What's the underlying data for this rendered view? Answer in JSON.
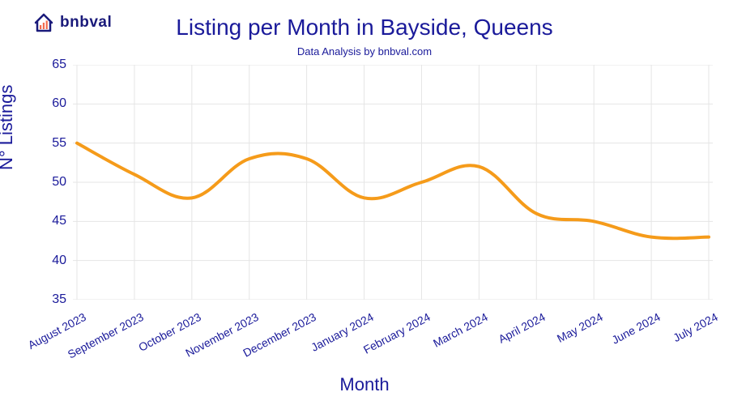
{
  "logo": {
    "text": "bnbval"
  },
  "chart": {
    "type": "line",
    "title": "Listing per Month in Bayside, Queens",
    "subtitle": "Data Analysis by bnbval.com",
    "ylabel": "N° Listings",
    "xlabel": "Month",
    "title_fontsize": 28,
    "subtitle_fontsize": 13,
    "axis_label_fontsize": 22,
    "tick_fontsize": 16,
    "categories": [
      "August 2023",
      "September 2023",
      "October 2023",
      "November 2023",
      "December 2023",
      "January 2024",
      "February 2024",
      "March 2024",
      "April 2024",
      "May 2024",
      "June 2024",
      "July 2024"
    ],
    "values": [
      55,
      51,
      48,
      53,
      53,
      48,
      50,
      52,
      46,
      45,
      43,
      43
    ],
    "line_color": "#f59b1a",
    "line_width": 4,
    "grid_color": "#e5e5e5",
    "background_color": "#ffffff",
    "text_color": "#1a1a9a",
    "ylim": [
      35,
      65
    ],
    "ytick_step": 5,
    "yticks": [
      35,
      40,
      45,
      50,
      55,
      60,
      65
    ],
    "xlabel_rotation_deg": -28,
    "smooth": true
  }
}
